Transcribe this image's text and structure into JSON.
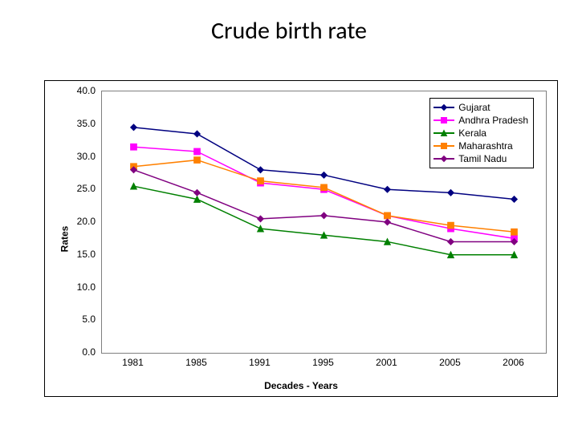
{
  "title": "Crude birth rate",
  "chart": {
    "type": "line",
    "ylabel": "Rates",
    "xlabel": "Decades - Years",
    "ylim": [
      0.0,
      40.0
    ],
    "ytick_step": 5.0,
    "yticks": [
      "0.0",
      "5.0",
      "10.0",
      "15.0",
      "20.0",
      "25.0",
      "30.0",
      "35.0",
      "40.0"
    ],
    "categories": [
      "1981",
      "1985",
      "1991",
      "1995",
      "2001",
      "2005",
      "2006"
    ],
    "background_color": "#ffffff",
    "plot_border_color": "#7f7f7f",
    "outer_border_color": "#000000",
    "tick_fontsize": 12,
    "label_fontsize": 12,
    "title_fontsize": 30,
    "line_width": 1.5,
    "marker_size": 5,
    "series": [
      {
        "name": "Gujarat",
        "color": "#000080",
        "marker": "diamond",
        "values": [
          34.5,
          33.5,
          28.0,
          27.2,
          25.0,
          24.5,
          23.5
        ]
      },
      {
        "name": "Andhra Pradesh",
        "color": "#ff00ff",
        "marker": "square",
        "values": [
          31.5,
          30.8,
          26.0,
          25.0,
          21.0,
          19.0,
          17.5
        ]
      },
      {
        "name": "Kerala",
        "color": "#008000",
        "marker": "triangle",
        "values": [
          25.5,
          23.5,
          19.0,
          18.0,
          17.0,
          15.0,
          15.0
        ]
      },
      {
        "name": "Maharashtra",
        "color": "#ff8000",
        "marker": "square",
        "values": [
          28.5,
          29.5,
          26.3,
          25.3,
          21.0,
          19.5,
          18.5
        ]
      },
      {
        "name": "Tamil Nadu",
        "color": "#800080",
        "marker": "diamond",
        "values": [
          28.0,
          24.5,
          20.5,
          21.0,
          20.0,
          17.0,
          17.0
        ]
      }
    ]
  }
}
